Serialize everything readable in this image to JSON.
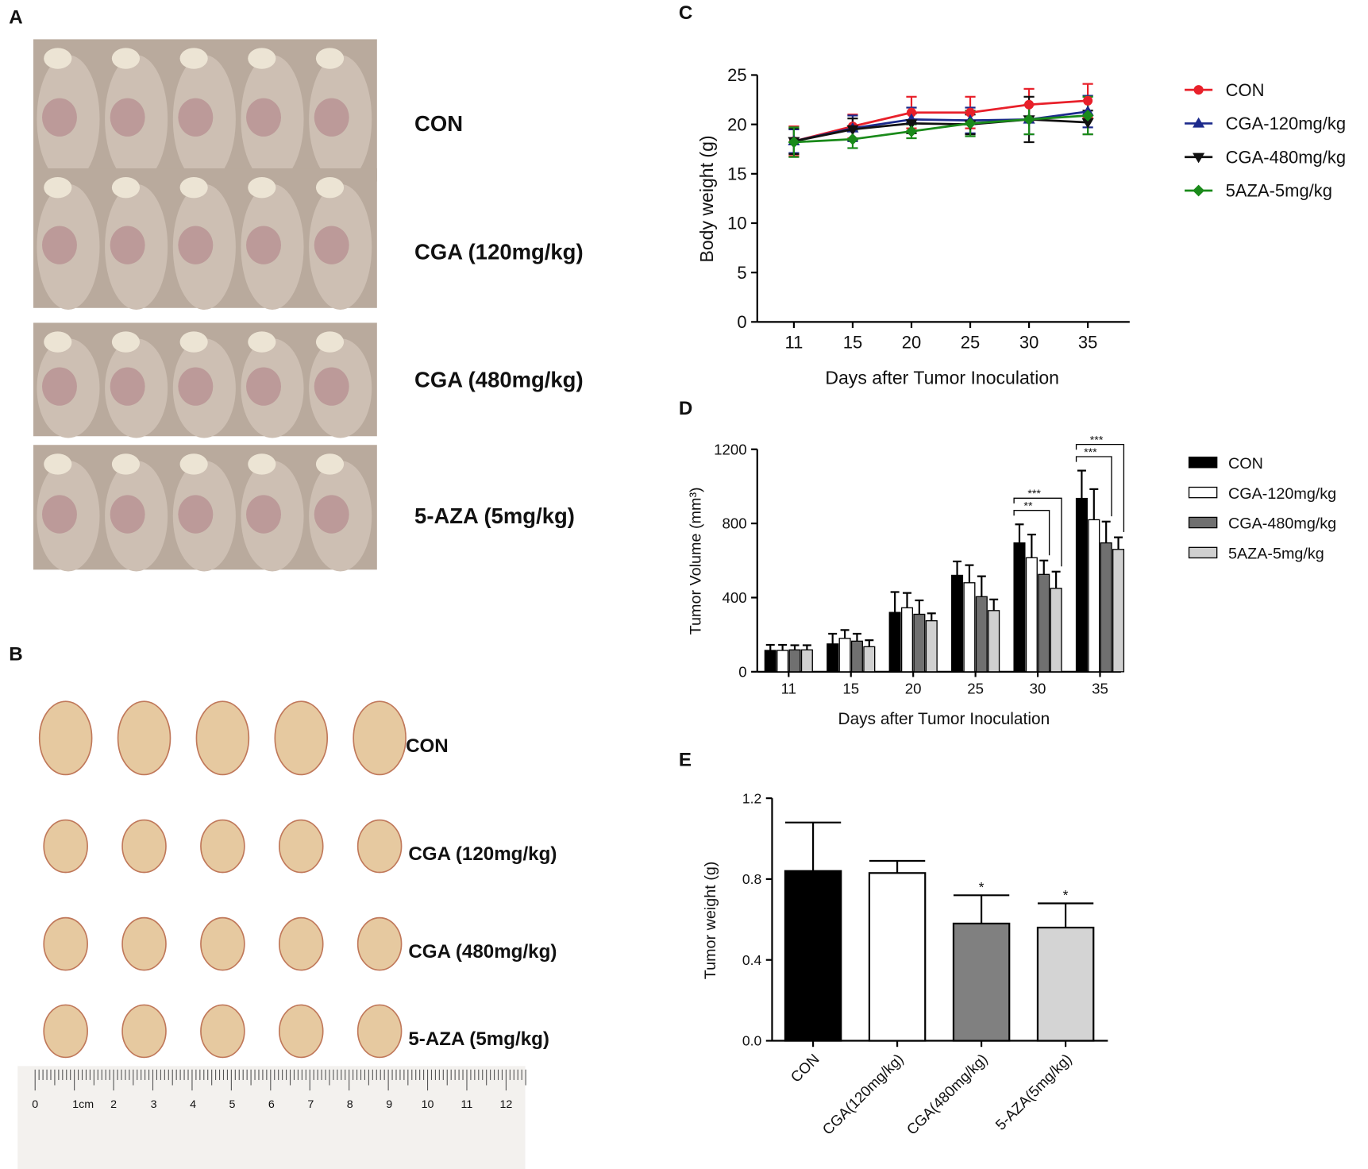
{
  "panels": {
    "letters": [
      "A",
      "B",
      "C",
      "D",
      "E"
    ],
    "A": {
      "labels": [
        "CON",
        "CGA (120mg/kg)",
        "CGA (480mg/kg)",
        "5-AZA (5mg/kg)"
      ]
    },
    "B": {
      "labels": [
        "CON",
        "CGA (120mg/kg)",
        "CGA (480mg/kg)",
        "5-AZA (5mg/kg)"
      ],
      "ruler": [
        "0",
        "1cm",
        "2",
        "3",
        "4",
        "5",
        "6",
        "7",
        "8",
        "9",
        "10",
        "11",
        "12"
      ]
    }
  },
  "chart_data": [
    {
      "type": "line",
      "xlabel": "Days after Tumor Inoculation",
      "ylabel": "Body weight (g)",
      "categories": [
        "11",
        "15",
        "20",
        "25",
        "30",
        "35"
      ],
      "ylim": [
        0,
        25
      ],
      "yticks": [
        0,
        5,
        10,
        15,
        20,
        25
      ],
      "series": [
        {
          "name": "CON",
          "color": "#e8202a",
          "marker": "circle",
          "values": [
            18.3,
            19.8,
            21.2,
            21.2,
            22.0,
            22.4
          ],
          "errors": [
            1.5,
            1.2,
            1.6,
            1.6,
            1.6,
            1.7
          ]
        },
        {
          "name": "CGA-120mg/kg",
          "color": "#1c2a8c",
          "marker": "triangle-up",
          "values": [
            18.3,
            19.6,
            20.5,
            20.4,
            20.5,
            21.3
          ],
          "errors": [
            1.2,
            1.3,
            1.2,
            1.3,
            1.5,
            1.6
          ]
        },
        {
          "name": "CGA-480mg/kg",
          "color": "#111111",
          "marker": "triangle-down",
          "values": [
            18.3,
            19.5,
            20.1,
            20.0,
            20.5,
            20.2
          ],
          "errors": [
            1.3,
            1.1,
            1.0,
            1.0,
            2.3,
            1.2
          ]
        },
        {
          "name": "5AZA-5mg/kg",
          "color": "#1a8a1a",
          "marker": "diamond",
          "values": [
            18.2,
            18.5,
            19.3,
            20.1,
            20.5,
            20.9
          ],
          "errors": [
            1.5,
            0.9,
            0.7,
            1.3,
            1.5,
            1.9
          ]
        }
      ]
    },
    {
      "type": "grouped-bar",
      "xlabel": "Days after Tumor Inoculation",
      "ylabel": "Tumor Volume (mm³)",
      "categories": [
        "11",
        "15",
        "20",
        "25",
        "30",
        "35"
      ],
      "ylim": [
        0,
        1200
      ],
      "yticks": [
        0,
        400,
        800,
        1200
      ],
      "series": [
        {
          "name": "CON",
          "color": "#000000",
          "values": [
            115,
            150,
            320,
            520,
            695,
            935
          ],
          "errors": [
            30,
            55,
            110,
            75,
            100,
            150
          ]
        },
        {
          "name": "CGA-120mg/kg",
          "color": "#ffffff",
          "values": [
            115,
            180,
            345,
            480,
            615,
            820
          ],
          "errors": [
            30,
            45,
            80,
            95,
            125,
            165
          ]
        },
        {
          "name": "CGA-480mg/kg",
          "color": "#707070",
          "values": [
            118,
            165,
            310,
            405,
            525,
            695
          ],
          "errors": [
            25,
            40,
            75,
            110,
            75,
            115
          ]
        },
        {
          "name": "5AZA-5mg/kg",
          "color": "#d0d0d0",
          "values": [
            118,
            135,
            275,
            330,
            450,
            660
          ],
          "errors": [
            25,
            35,
            40,
            60,
            90,
            65
          ]
        }
      ],
      "annotations": [
        {
          "text": "**",
          "category": 4,
          "from": 0,
          "to": 2
        },
        {
          "text": "***",
          "category": 4,
          "from": 0,
          "to": 3
        },
        {
          "text": "***",
          "category": 5,
          "from": 0,
          "to": 2
        },
        {
          "text": "***",
          "category": 5,
          "from": 0,
          "to": 3
        }
      ]
    },
    {
      "type": "bar",
      "ylabel": "Tumor weight (g)",
      "categories": [
        "CON",
        "CGA(120mg/kg)",
        "CGA(480mg/kg)",
        "5-AZA(5mg/kg)"
      ],
      "values": [
        0.84,
        0.83,
        0.58,
        0.56
      ],
      "errors": [
        0.24,
        0.06,
        0.14,
        0.12
      ],
      "colors": [
        "#000000",
        "#ffffff",
        "#808080",
        "#d4d4d4"
      ],
      "ylim": [
        0,
        1.2
      ],
      "yticks": [
        {
          "value": 0,
          "label": "0.0"
        },
        0.4,
        0.8,
        1.2
      ],
      "annotations": [
        {
          "text": "*",
          "category": 2
        },
        {
          "text": "*",
          "category": 3
        }
      ]
    }
  ]
}
